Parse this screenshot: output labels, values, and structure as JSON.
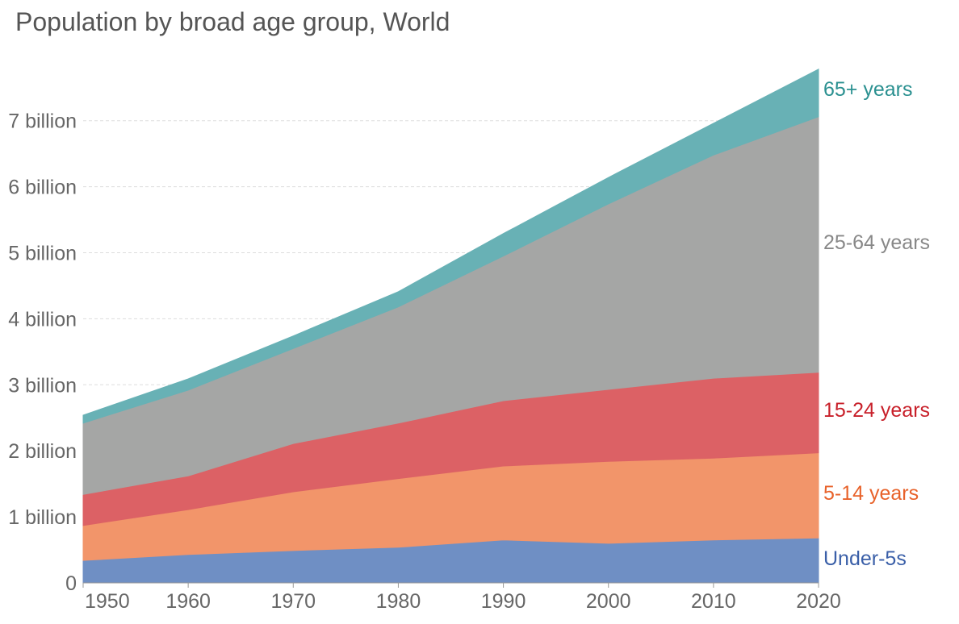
{
  "chart_data": {
    "type": "area",
    "stacked": true,
    "title": "Population by broad age group, World",
    "xlabel": "",
    "ylabel": "",
    "x": [
      1950,
      1960,
      1970,
      1980,
      1990,
      2000,
      2010,
      2020
    ],
    "xlim": [
      1950,
      2020
    ],
    "ylim": [
      0,
      8000000000
    ],
    "grid": "horizontal dashed",
    "legend": "inline labels at right end of each series",
    "x_ticks": [
      "1950",
      "1960",
      "1970",
      "1980",
      "1990",
      "2000",
      "2010",
      "2020"
    ],
    "y_ticks": [
      "0",
      "1 billion",
      "2 billion",
      "3 billion",
      "4 billion",
      "5 billion",
      "6 billion",
      "7 billion"
    ],
    "series": [
      {
        "name": "Under-5s",
        "color": "#6f8fc4",
        "label_color": "#3a5fa8",
        "values": [
          340000000,
          430000000,
          490000000,
          540000000,
          650000000,
          600000000,
          650000000,
          680000000
        ]
      },
      {
        "name": "5-14 years",
        "color": "#f2956a",
        "label_color": "#e8622a",
        "values": [
          530000000,
          680000000,
          890000000,
          1040000000,
          1120000000,
          1240000000,
          1240000000,
          1290000000
        ]
      },
      {
        "name": "15-24 years",
        "color": "#dc6165",
        "label_color": "#c8202a",
        "values": [
          470000000,
          510000000,
          730000000,
          840000000,
          990000000,
          1090000000,
          1210000000,
          1220000000
        ]
      },
      {
        "name": "25-64 years",
        "color": "#a5a6a5",
        "label_color": "#888888",
        "values": [
          1080000000,
          1300000000,
          1440000000,
          1760000000,
          2190000000,
          2810000000,
          3380000000,
          3870000000
        ]
      },
      {
        "name": "65+ years",
        "color": "#68b1b5",
        "label_color": "#2a9090",
        "values": [
          120000000,
          170000000,
          190000000,
          230000000,
          340000000,
          400000000,
          480000000,
          720000000
        ]
      }
    ]
  }
}
